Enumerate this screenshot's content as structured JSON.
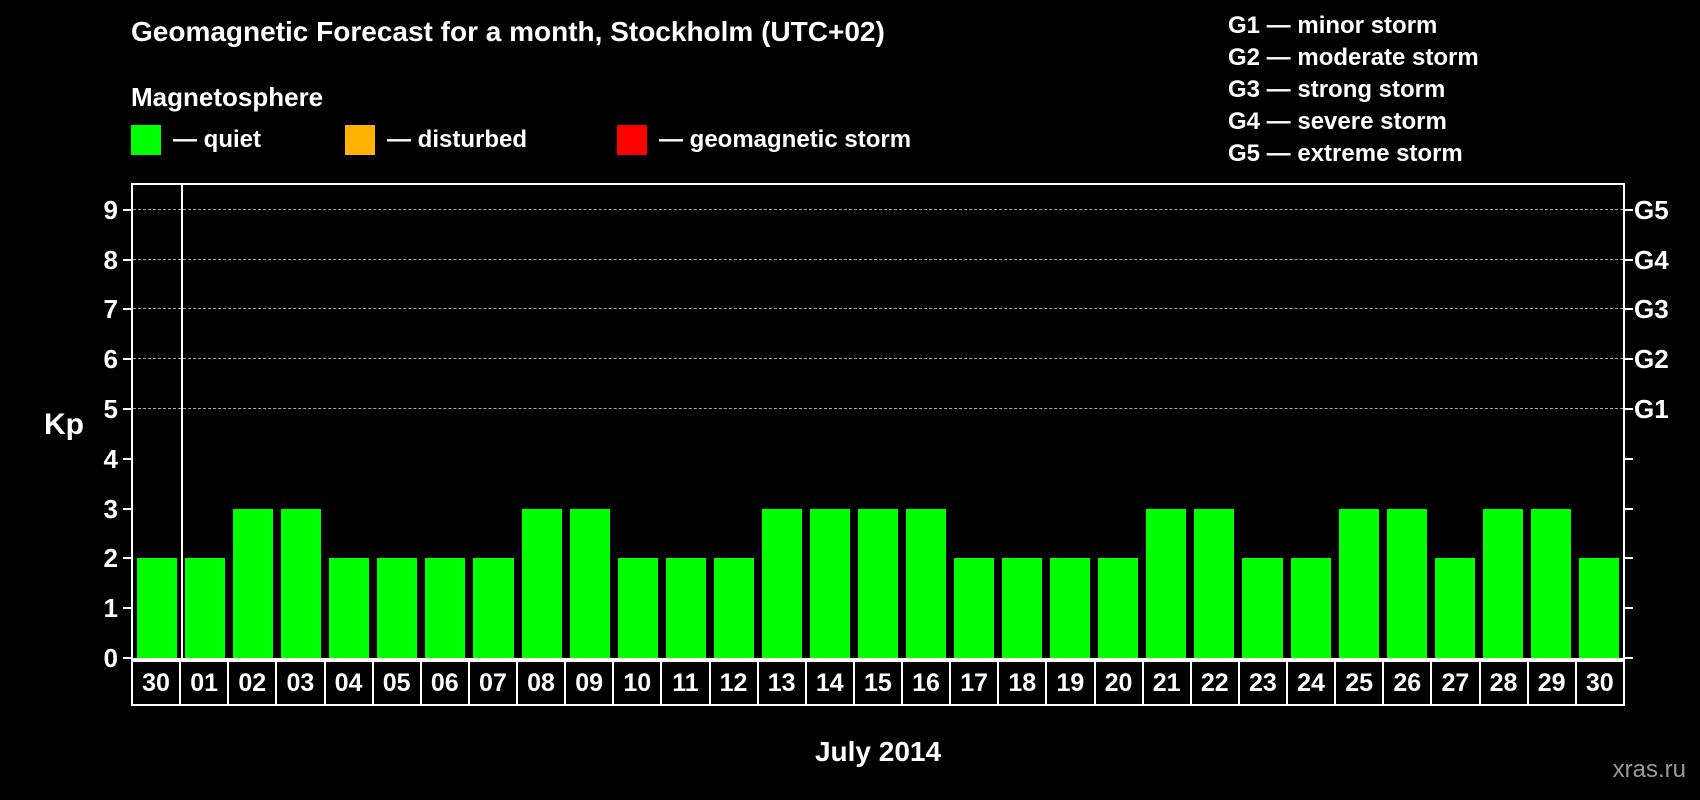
{
  "title": "Geomagnetic Forecast for a month, Stockholm (UTC+02)",
  "subtitle": "Magnetosphere",
  "legend": {
    "quiet": "— quiet",
    "disturbed": "— disturbed",
    "storm": "— geomagnetic storm"
  },
  "g_legend": [
    "G1 — minor storm",
    "G2 — moderate storm",
    "G3 — strong storm",
    "G4 — severe storm",
    "G5 — extreme storm"
  ],
  "axis": {
    "kp_label": "Kp",
    "y_ticks": [
      0,
      1,
      2,
      3,
      4,
      5,
      6,
      7,
      8,
      9
    ],
    "right_axis": [
      {
        "label": "G5",
        "value": 9
      },
      {
        "label": "G4",
        "value": 8
      },
      {
        "label": "G3",
        "value": 7
      },
      {
        "label": "G2",
        "value": 6
      },
      {
        "label": "G1",
        "value": 5
      }
    ]
  },
  "xlabel": "July 2014",
  "watermark": "xras.ru",
  "colors": {
    "quiet": "#00ff00",
    "disturbed": "#ffb300",
    "storm": "#ff0000",
    "background": "#000000",
    "text": "#ffffff"
  },
  "chart_data": {
    "type": "bar",
    "title": "Geomagnetic Forecast for a month, Stockholm (UTC+02)",
    "xlabel": "July 2014",
    "ylabel": "Kp",
    "categories": [
      "30",
      "01",
      "02",
      "03",
      "04",
      "05",
      "06",
      "07",
      "08",
      "09",
      "10",
      "11",
      "12",
      "13",
      "14",
      "15",
      "16",
      "17",
      "18",
      "19",
      "20",
      "21",
      "22",
      "23",
      "24",
      "25",
      "26",
      "27",
      "28",
      "29",
      "30"
    ],
    "values": [
      2,
      2,
      3,
      3,
      2,
      2,
      2,
      2,
      3,
      3,
      2,
      2,
      2,
      3,
      3,
      3,
      3,
      2,
      2,
      2,
      2,
      3,
      3,
      2,
      2,
      3,
      3,
      2,
      3,
      3,
      2
    ],
    "status": "quiet",
    "ylim": [
      0,
      9
    ],
    "gridlines_at": [
      5,
      6,
      7,
      8,
      9
    ],
    "legend_position": "top",
    "month_separator_after_index": 0
  }
}
